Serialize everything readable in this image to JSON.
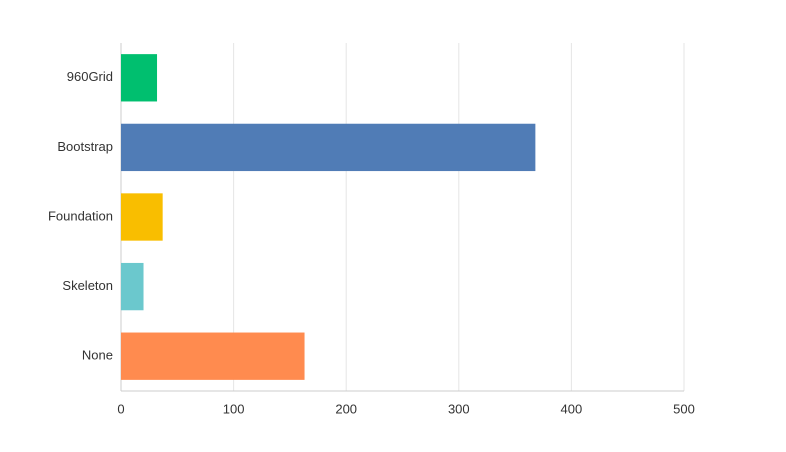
{
  "chart_data": {
    "type": "bar",
    "orientation": "horizontal",
    "categories": [
      "960Grid",
      "Bootstrap",
      "Foundation",
      "Skeleton",
      "None"
    ],
    "values": [
      32,
      368,
      37,
      20,
      163
    ],
    "colors": [
      "#00bf6f",
      "#507cb6",
      "#f9be00",
      "#6bc8cd",
      "#ff8b4f"
    ],
    "xlim": [
      0,
      500
    ],
    "xticks": [
      0,
      100,
      200,
      300,
      400,
      500
    ],
    "grid": true
  }
}
